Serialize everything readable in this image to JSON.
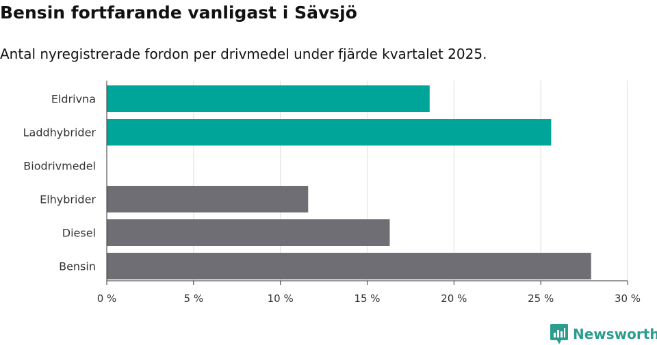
{
  "title": "Bensin fortfarande vanligast i Sävsjö",
  "subtitle": "Antal nyregistrerade fordon per drivmedel under fjärde kvartalet 2025.",
  "brand": {
    "name": "Newsworthy",
    "color": "#2a9d8f"
  },
  "colors": {
    "electric": "#00a59a",
    "other": "#6f6e75",
    "grid": "#dddddd",
    "axis": "#333333"
  },
  "chart_data": {
    "type": "bar",
    "orientation": "horizontal",
    "categories": [
      "Eldrivna",
      "Laddhybrider",
      "Biodrivmedel",
      "Elhybrider",
      "Diesel",
      "Bensin"
    ],
    "values": [
      18.6,
      25.6,
      0,
      11.6,
      16.3,
      27.9
    ],
    "bar_colors": [
      "#00a59a",
      "#00a59a",
      "#00a59a",
      "#6f6e75",
      "#6f6e75",
      "#6f6e75"
    ],
    "xlim": [
      0,
      30
    ],
    "ticks": [
      0,
      5,
      10,
      15,
      20,
      25,
      30
    ],
    "tick_labels": [
      "0 %",
      "5 %",
      "10 %",
      "15 %",
      "20 %",
      "25 %",
      "30 %"
    ],
    "grid": true,
    "legend": "none"
  }
}
